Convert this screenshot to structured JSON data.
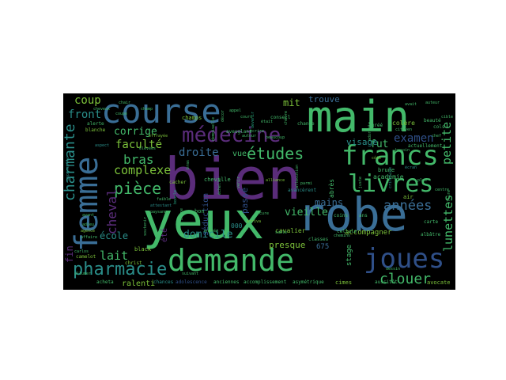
{
  "colors": {
    "background": "#000000",
    "page": "#ffffff",
    "palette": [
      "#43b96a",
      "#3a6e96",
      "#5a2c7a",
      "#2a8e8a",
      "#2f4f88",
      "#7cc23a",
      "#24a07e",
      "#352060"
    ]
  },
  "words": {
    "bien": "bien",
    "yeux": "yeux",
    "main": "main",
    "robe": "robe",
    "course": "course",
    "demande": "demande",
    "femme": "femme",
    "medecine": "médecine",
    "francs": "francs",
    "joues": "joues",
    "livres": "livres",
    "pharmacie": "pharmacie",
    "etudes": "études",
    "piece": "pièce",
    "charmante": "charmante",
    "clouer": "clouer",
    "annees": "années",
    "cheval": "cheval",
    "lunettes": "lunettes",
    "examen": "examen",
    "petite": "petite",
    "bras": "bras",
    "complexe": "complexe",
    "faculte": "faculté",
    "droite": "droite",
    "corrige": "corrige",
    "front": "front",
    "coup": "coup",
    "lait": "lait",
    "ecole": "école",
    "fut": "fut",
    "mit": "mit",
    "trouve": "trouve",
    "visage": "visage",
    "vieille": "vieille",
    "mains": "mains",
    "domicile": "domicile",
    "presque": "presque",
    "ralenti": "ralenti",
    "seduction": "séduction",
    "passe": "passé",
    "vue": "vue",
    "fin": "fin",
    "accompagner": "accompagner",
    "n675": "675",
    "n000": "000",
    "ete": "été",
    "stage": "stage",
    "cavalier": "cavalier",
    "colere": "colère",
    "champs": "champs",
    "cheville": "cheville",
    "academie": "académie",
    "brune": "brune",
    "abres": "abrès",
    "cimes": "cimes",
    "avocate": "avocate",
    "acheta": "acheta",
    "chances": "chances",
    "adolescence": "adolescence",
    "accomplissement": "accomplissement",
    "anciennes": "anciennes",
    "asymetrique": "asymétrique",
    "christ": "christ",
    "camelot": "camelot",
    "cacher": "cacher",
    "alerte": "alerte",
    "blanche": "blanche",
    "beaute": "beauté",
    "actuellement": "actuellement",
    "agree": "agréé",
    "air": "air",
    "avancerent": "avancèrent",
    "classes": "classes",
    "cellule": "cellule",
    "change": "change",
    "conseil": "conseil",
    "aveuglant": "aveuglant",
    "albatre": "albâtre",
    "carte": "carte",
    "cols": "cols",
    "coins": "coins",
    "ans": "ans",
    "black": "black",
    "bon": "bon",
    "aspect": "aspect",
    "boucle": "boucle",
    "besoin": "besoin",
    "effrayee": "effrayée",
    "attestant": "attestant",
    "adieu": "adieu",
    "appel": "appel",
    "carlos": "carlos",
    "affaire": "affaire",
    "cote": "côté",
    "ecran": "écran",
    "ecrire": "écrire",
    "avait": "avait",
    "autour": "autour",
    "devenir": "devenir",
    "chemins": "chemins",
    "etait": "était",
    "cours": "cours",
    "bras2": "bras",
    "appareille": "appareille",
    "elevees": "élevées",
    "allure": "allure",
    "agence": "agence",
    "auteur": "auteur",
    "chair": "chair",
    "coupe": "coupe",
    "decor": "décor",
    "entree": "entrée",
    "arriva": "arriva",
    "crinoline": "crinoline",
    "sable": "sable",
    "chevre": "chèvre",
    "citoyen": "citoyen",
    "cible": "cible",
    "alliance": "alliance",
    "echelle": "échelle",
    "cure": "cure",
    "dessin": "dessin",
    "juste": "juste",
    "paysanne": "paysanne",
    "soutenir": "soutenir",
    "chef": "chef",
    "plus": "plus",
    "aussitot": "aussitôt",
    "suivant": "suivant",
    "venir": "venir",
    "parmi": "parmi",
    "bonne": "bonne",
    "cheveux": "cheveux",
    "demoiselle": "demoiselle",
    "allocution": "allocution",
    "champ": "champ",
    "adorable": "adorable",
    "ayant": "ayant",
    "allumer": "allumer",
    "centre": "centre",
    "faible": "faible",
    "beaucoup": "beaucoup"
  }
}
